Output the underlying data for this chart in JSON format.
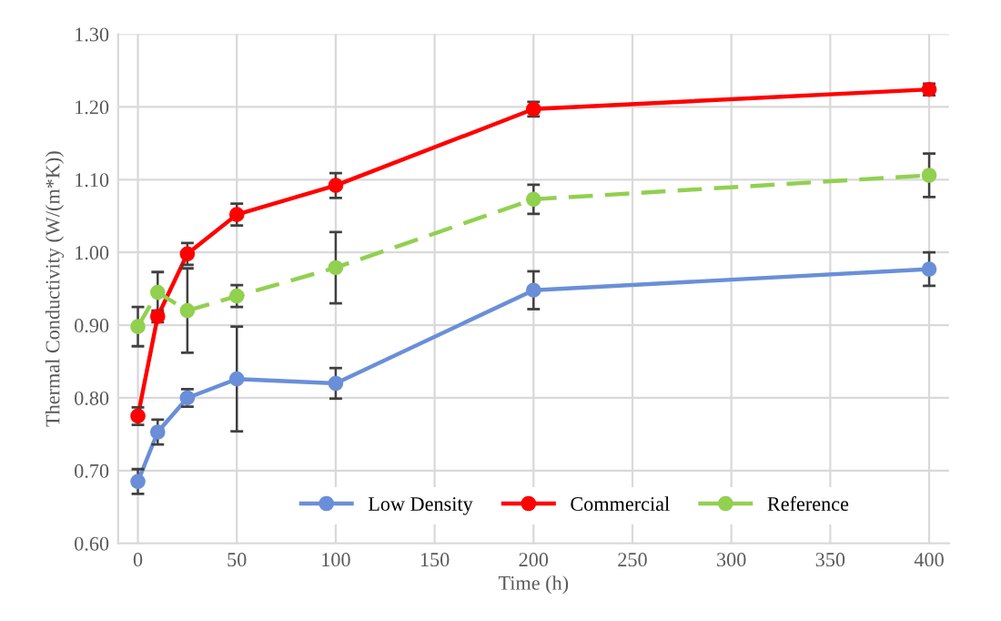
{
  "chart_data": {
    "type": "line",
    "xlabel": "Time (h)",
    "ylabel": "Thermal Conductivity (W/(m*K))",
    "xlim": [
      -10,
      410
    ],
    "xticks": [
      0,
      50,
      100,
      150,
      200,
      250,
      300,
      350,
      400
    ],
    "ylim": [
      0.6,
      1.3
    ],
    "yticks": [
      {
        "value": 0.6,
        "label": "0.60"
      },
      {
        "value": 0.7,
        "label": "0.70"
      },
      {
        "value": 0.8,
        "label": "0.80"
      },
      {
        "value": 0.9,
        "label": "0.90"
      },
      {
        "value": 1.0,
        "label": "1.00"
      },
      {
        "value": 1.1,
        "label": "1.10"
      },
      {
        "value": 1.2,
        "label": "1.20"
      },
      {
        "value": 1.3,
        "label": "1.30"
      }
    ],
    "grid": true,
    "legend": "bottom",
    "marker": "circle",
    "x": [
      0,
      10,
      25,
      50,
      100,
      200,
      400
    ],
    "series": [
      {
        "name": "Low Density",
        "color": "#6a8fd8",
        "line_style": "solid",
        "values": [
          0.685,
          0.753,
          0.8,
          0.826,
          0.82,
          0.948,
          0.977
        ],
        "errors": [
          0.017,
          0.017,
          0.012,
          0.072,
          0.021,
          0.026,
          0.023
        ]
      },
      {
        "name": "Commercial",
        "color": "#ff0000",
        "line_style": "solid",
        "values": [
          0.775,
          0.912,
          0.998,
          1.052,
          1.092,
          1.197,
          1.224
        ],
        "errors": [
          0.012,
          0.008,
          0.015,
          0.015,
          0.017,
          0.01,
          0.008
        ]
      },
      {
        "name": "Reference",
        "color": "#92d050",
        "line_style": "dashed",
        "values": [
          0.898,
          0.945,
          0.92,
          0.94,
          0.979,
          1.073,
          1.106
        ],
        "errors": [
          0.027,
          0.028,
          0.058,
          0.015,
          0.049,
          0.02,
          0.03
        ]
      }
    ]
  }
}
